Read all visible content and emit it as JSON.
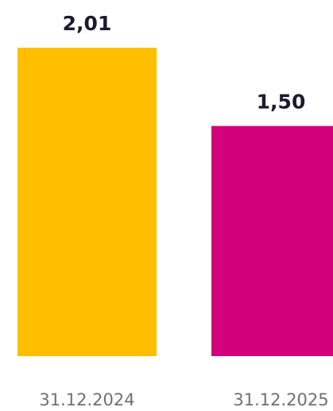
{
  "chart_data": {
    "type": "bar",
    "categories": [
      "31.12.2024",
      "31.12.2025"
    ],
    "values": [
      2.01,
      1.5
    ],
    "value_labels": [
      "2,01",
      "1,50"
    ],
    "colors": [
      "#ffbe00",
      "#d3007b"
    ],
    "title": "",
    "xlabel": "",
    "ylabel": "",
    "ylim": [
      0,
      2.01
    ],
    "grid": false,
    "legend": "none"
  }
}
